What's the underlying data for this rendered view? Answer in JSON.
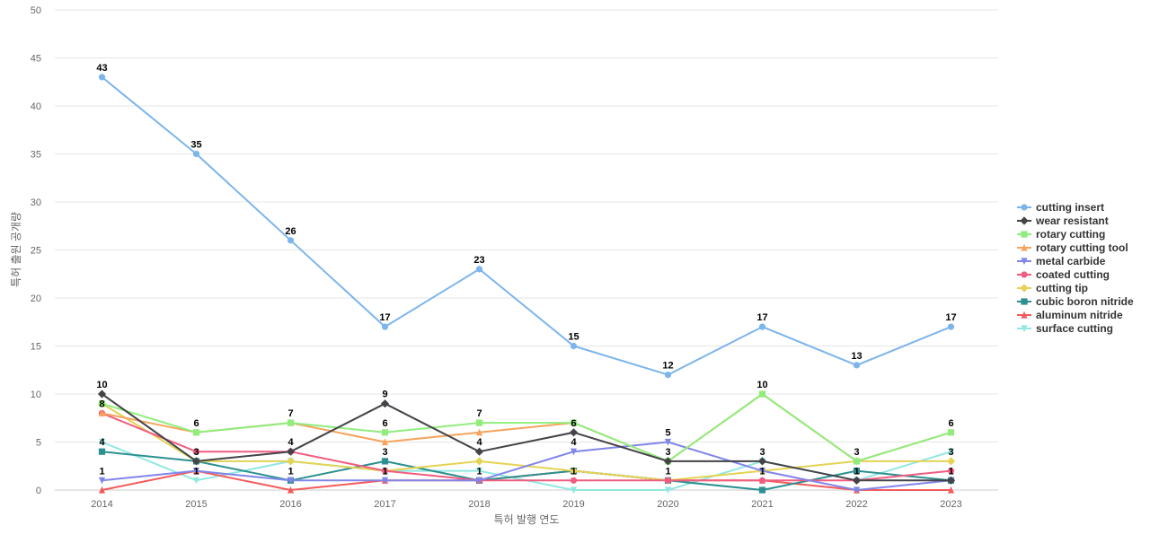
{
  "chart_data": {
    "type": "line",
    "xlabel": "특허 발행 연도",
    "ylabel": "특허 출원 공개량",
    "categories": [
      "2014",
      "2015",
      "2016",
      "2017",
      "2018",
      "2019",
      "2020",
      "2021",
      "2022",
      "2023"
    ],
    "ylim": [
      0,
      50
    ],
    "yticks": [
      0,
      5,
      10,
      15,
      20,
      25,
      30,
      35,
      40,
      45,
      50
    ],
    "grid": true,
    "legend_position": "right",
    "series": [
      {
        "name": "cutting insert",
        "color": "#7cb5ec",
        "marker": "circle",
        "values": [
          43,
          35,
          26,
          17,
          23,
          15,
          12,
          17,
          13,
          17
        ],
        "labeled": true
      },
      {
        "name": "wear resistant",
        "color": "#434348",
        "marker": "diamond",
        "values": [
          10,
          3,
          4,
          9,
          4,
          6,
          3,
          3,
          1,
          1
        ],
        "labeled": true
      },
      {
        "name": "rotary cutting",
        "color": "#90ed7d",
        "marker": "square",
        "values": [
          9,
          6,
          7,
          6,
          7,
          7,
          3,
          10,
          3,
          6
        ],
        "labeled": false
      },
      {
        "name": "rotary cutting tool",
        "color": "#f7a35c",
        "marker": "triangle",
        "values": [
          8,
          6,
          7,
          5,
          6,
          7,
          3,
          10,
          3,
          6
        ],
        "labeled": false
      },
      {
        "name": "metal carbide",
        "color": "#8085e9",
        "marker": "triangle-down",
        "values": [
          1,
          2,
          1,
          1,
          1,
          4,
          5,
          2,
          0,
          1
        ],
        "labeled": false
      },
      {
        "name": "coated cutting",
        "color": "#f15c80",
        "marker": "circle",
        "values": [
          8,
          4,
          4,
          2,
          1,
          1,
          1,
          1,
          1,
          2
        ],
        "labeled": false
      },
      {
        "name": "cutting tip",
        "color": "#e4d354",
        "marker": "diamond",
        "values": [
          9,
          3,
          3,
          2,
          3,
          2,
          1,
          2,
          3,
          3
        ],
        "labeled": false
      },
      {
        "name": "cubic boron nitride",
        "color": "#2b908f",
        "marker": "square",
        "values": [
          4,
          3,
          1,
          3,
          1,
          2,
          1,
          0,
          2,
          1
        ],
        "labeled": false
      },
      {
        "name": "aluminum nitride",
        "color": "#f45b5b",
        "marker": "triangle",
        "values": [
          0,
          2,
          0,
          1,
          1,
          2,
          1,
          1,
          0,
          0
        ],
        "labeled": false
      },
      {
        "name": "surface cutting",
        "color": "#91e8e1",
        "marker": "triangle-down",
        "values": [
          5,
          1,
          3,
          2,
          2,
          0,
          0,
          3,
          1,
          4
        ],
        "labeled": false
      }
    ],
    "data_labels": [
      {
        "category": "2014",
        "value": 43,
        "text": "43"
      },
      {
        "category": "2015",
        "value": 35,
        "text": "35"
      },
      {
        "category": "2016",
        "value": 26,
        "text": "26"
      },
      {
        "category": "2017",
        "value": 17,
        "text": "17"
      },
      {
        "category": "2018",
        "value": 23,
        "text": "23"
      },
      {
        "category": "2019",
        "value": 15,
        "text": "15"
      },
      {
        "category": "2020",
        "value": 12,
        "text": "12"
      },
      {
        "category": "2021",
        "value": 17,
        "text": "17"
      },
      {
        "category": "2022",
        "value": 13,
        "text": "13"
      },
      {
        "category": "2023",
        "value": 17,
        "text": "17"
      },
      {
        "category": "2014",
        "value": 10,
        "text": "10"
      },
      {
        "category": "2014",
        "value": 8,
        "text": "8"
      },
      {
        "category": "2014",
        "value": 4,
        "text": "4"
      },
      {
        "category": "2014",
        "value": 1,
        "text": "1"
      },
      {
        "category": "2015",
        "value": 6,
        "text": "6"
      },
      {
        "category": "2015",
        "value": 3,
        "text": "3"
      },
      {
        "category": "2015",
        "value": 1,
        "text": "1"
      },
      {
        "category": "2016",
        "value": 7,
        "text": "7"
      },
      {
        "category": "2016",
        "value": 4,
        "text": "4"
      },
      {
        "category": "2016",
        "value": 1,
        "text": "1"
      },
      {
        "category": "2017",
        "value": 9,
        "text": "9"
      },
      {
        "category": "2017",
        "value": 6,
        "text": "6"
      },
      {
        "category": "2017",
        "value": 3,
        "text": "3"
      },
      {
        "category": "2017",
        "value": 1,
        "text": "1"
      },
      {
        "category": "2018",
        "value": 7,
        "text": "7"
      },
      {
        "category": "2018",
        "value": 4,
        "text": "4"
      },
      {
        "category": "2018",
        "value": 1,
        "text": "1"
      },
      {
        "category": "2019",
        "value": 6,
        "text": "6"
      },
      {
        "category": "2019",
        "value": 4,
        "text": "4"
      },
      {
        "category": "2019",
        "value": 1,
        "text": "1"
      },
      {
        "category": "2020",
        "value": 5,
        "text": "5"
      },
      {
        "category": "2020",
        "value": 3,
        "text": "3"
      },
      {
        "category": "2020",
        "value": 1,
        "text": "1"
      },
      {
        "category": "2021",
        "value": 10,
        "text": "10"
      },
      {
        "category": "2021",
        "value": 3,
        "text": "3"
      },
      {
        "category": "2021",
        "value": 1,
        "text": "1"
      },
      {
        "category": "2022",
        "value": 3,
        "text": "3"
      },
      {
        "category": "2022",
        "value": 1,
        "text": "1"
      },
      {
        "category": "2023",
        "value": 6,
        "text": "6"
      },
      {
        "category": "2023",
        "value": 3,
        "text": "3"
      },
      {
        "category": "2023",
        "value": 1,
        "text": "1"
      }
    ]
  }
}
